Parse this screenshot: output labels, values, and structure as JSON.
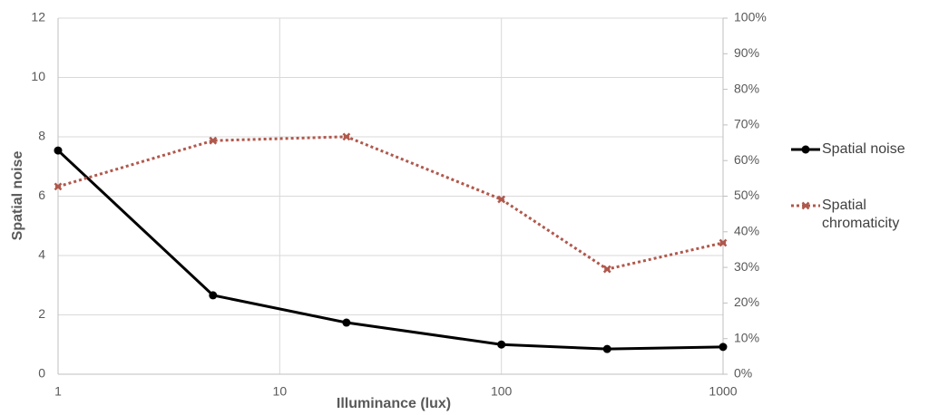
{
  "chart_data": {
    "type": "line",
    "xlabel": "Illuminance (lux)",
    "ylabel": "Spatial noise",
    "x": [
      1,
      5,
      20,
      100,
      300,
      1000
    ],
    "xscale": "log",
    "xlim": [
      1,
      1000
    ],
    "xticks": [
      1,
      10,
      100,
      1000
    ],
    "ylim": [
      0,
      12
    ],
    "yticks": [
      0,
      2,
      4,
      6,
      8,
      10,
      12
    ],
    "y2lim": [
      0,
      100
    ],
    "y2ticks": [
      {
        "value": 0,
        "label": "0%"
      },
      {
        "value": 10,
        "label": "10%"
      },
      {
        "value": 20,
        "label": "20%"
      },
      {
        "value": 30,
        "label": "30%"
      },
      {
        "value": 40,
        "label": "40%"
      },
      {
        "value": 50,
        "label": "50%"
      },
      {
        "value": 60,
        "label": "60%"
      },
      {
        "value": 70,
        "label": "70%"
      },
      {
        "value": 80,
        "label": "80%"
      },
      {
        "value": 90,
        "label": "90%"
      },
      {
        "value": 100,
        "label": "100%"
      }
    ],
    "grid": true,
    "legend": "right",
    "series": [
      {
        "name": "Spatial noise",
        "color": "#000000",
        "values": [
          7.54,
          2.66,
          1.74,
          1.0,
          0.85,
          0.92
        ]
      },
      {
        "name": "Spatial chromaticity",
        "color": "#b0584c",
        "axis": "y2",
        "dashed": true,
        "values": [
          52.7,
          65.6,
          66.7,
          49.1,
          29.5,
          36.9
        ]
      }
    ]
  }
}
